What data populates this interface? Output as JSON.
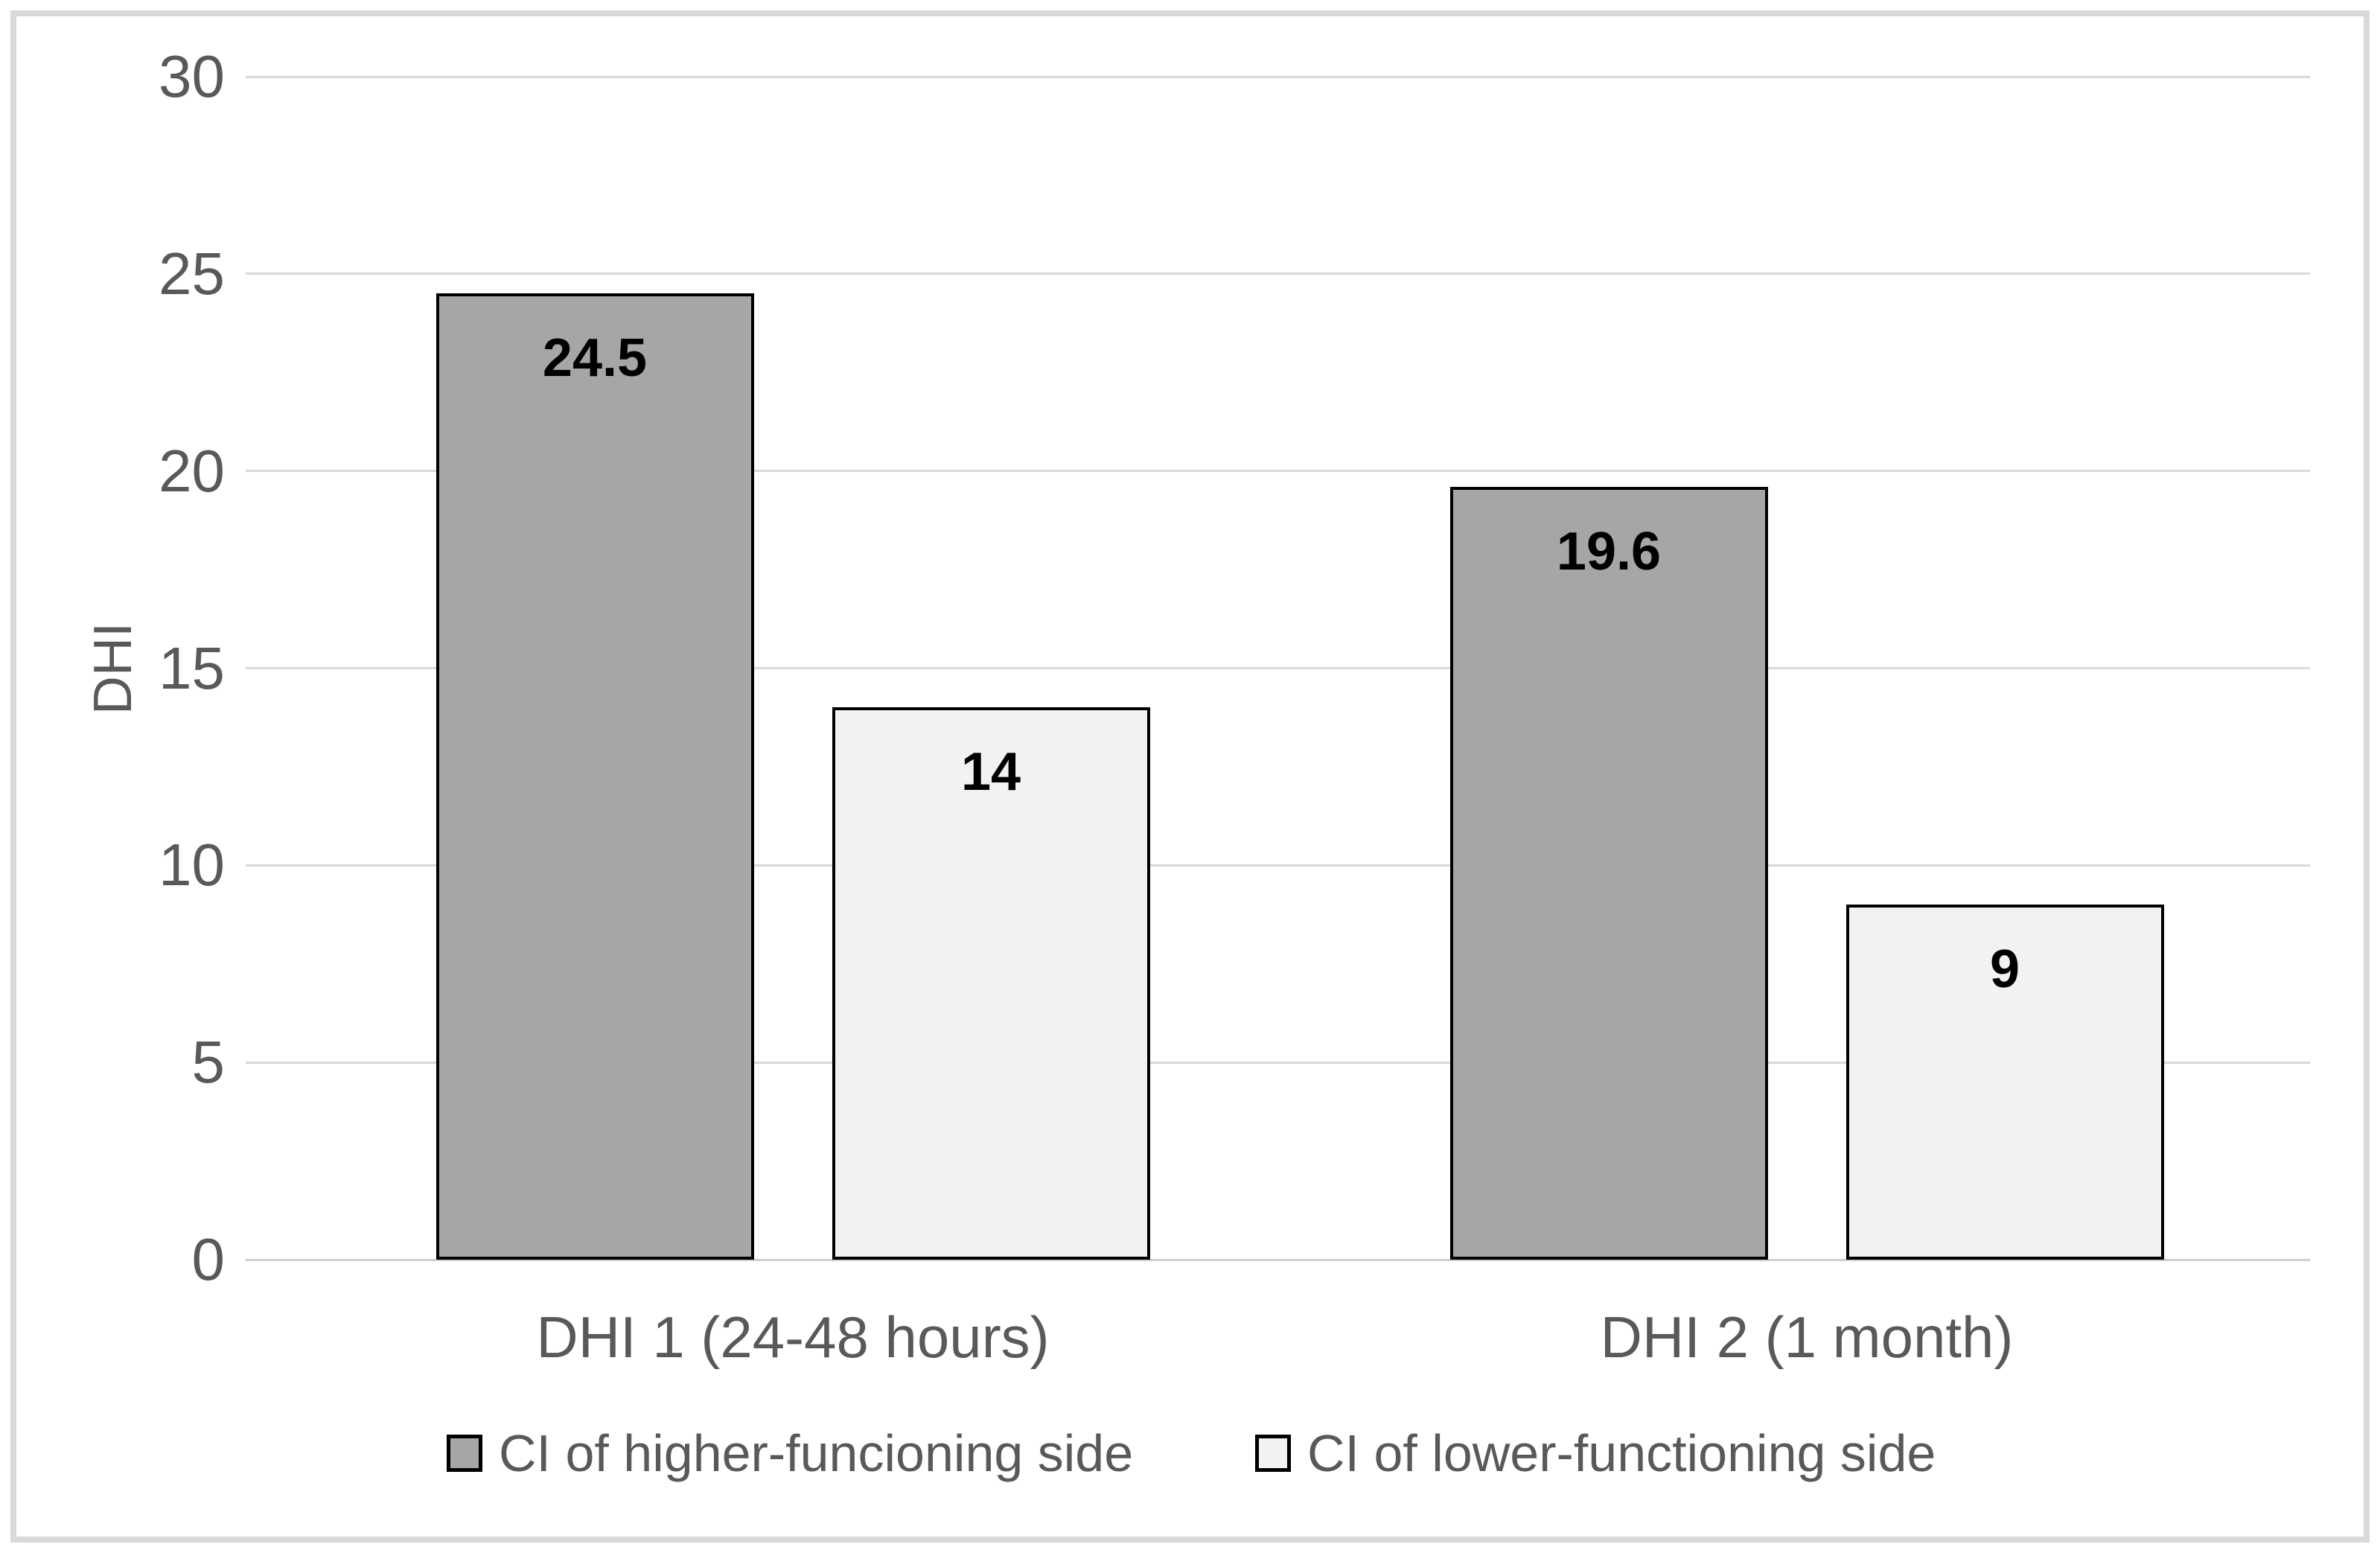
{
  "figure": {
    "background_color": "#ffffff",
    "frame_color": "#d9d9d9"
  },
  "chart_data": {
    "type": "bar",
    "title": "",
    "xlabel": "",
    "ylabel": "DHI",
    "ylim": [
      0,
      30
    ],
    "yticks": [
      0,
      5,
      10,
      15,
      20,
      25,
      30
    ],
    "grid": true,
    "legend_position": "bottom",
    "categories": [
      "DHI 1 (24-48 hours)",
      "DHI 2 (1 month)"
    ],
    "series": [
      {
        "name": "CI of higher-funcioning side",
        "values": [
          24.5,
          19.6
        ],
        "labels": [
          "24.5",
          "19.6"
        ],
        "fill": "#a6a6a6"
      },
      {
        "name": "CI of lower-functioning side",
        "values": [
          14,
          9
        ],
        "labels": [
          "14",
          "9"
        ],
        "fill": "#f2f2f2"
      }
    ],
    "colors": {
      "bar_border": "#000000",
      "gridline": "#d9d9d9",
      "axis_text": "#595959",
      "data_label": "#000000"
    }
  }
}
